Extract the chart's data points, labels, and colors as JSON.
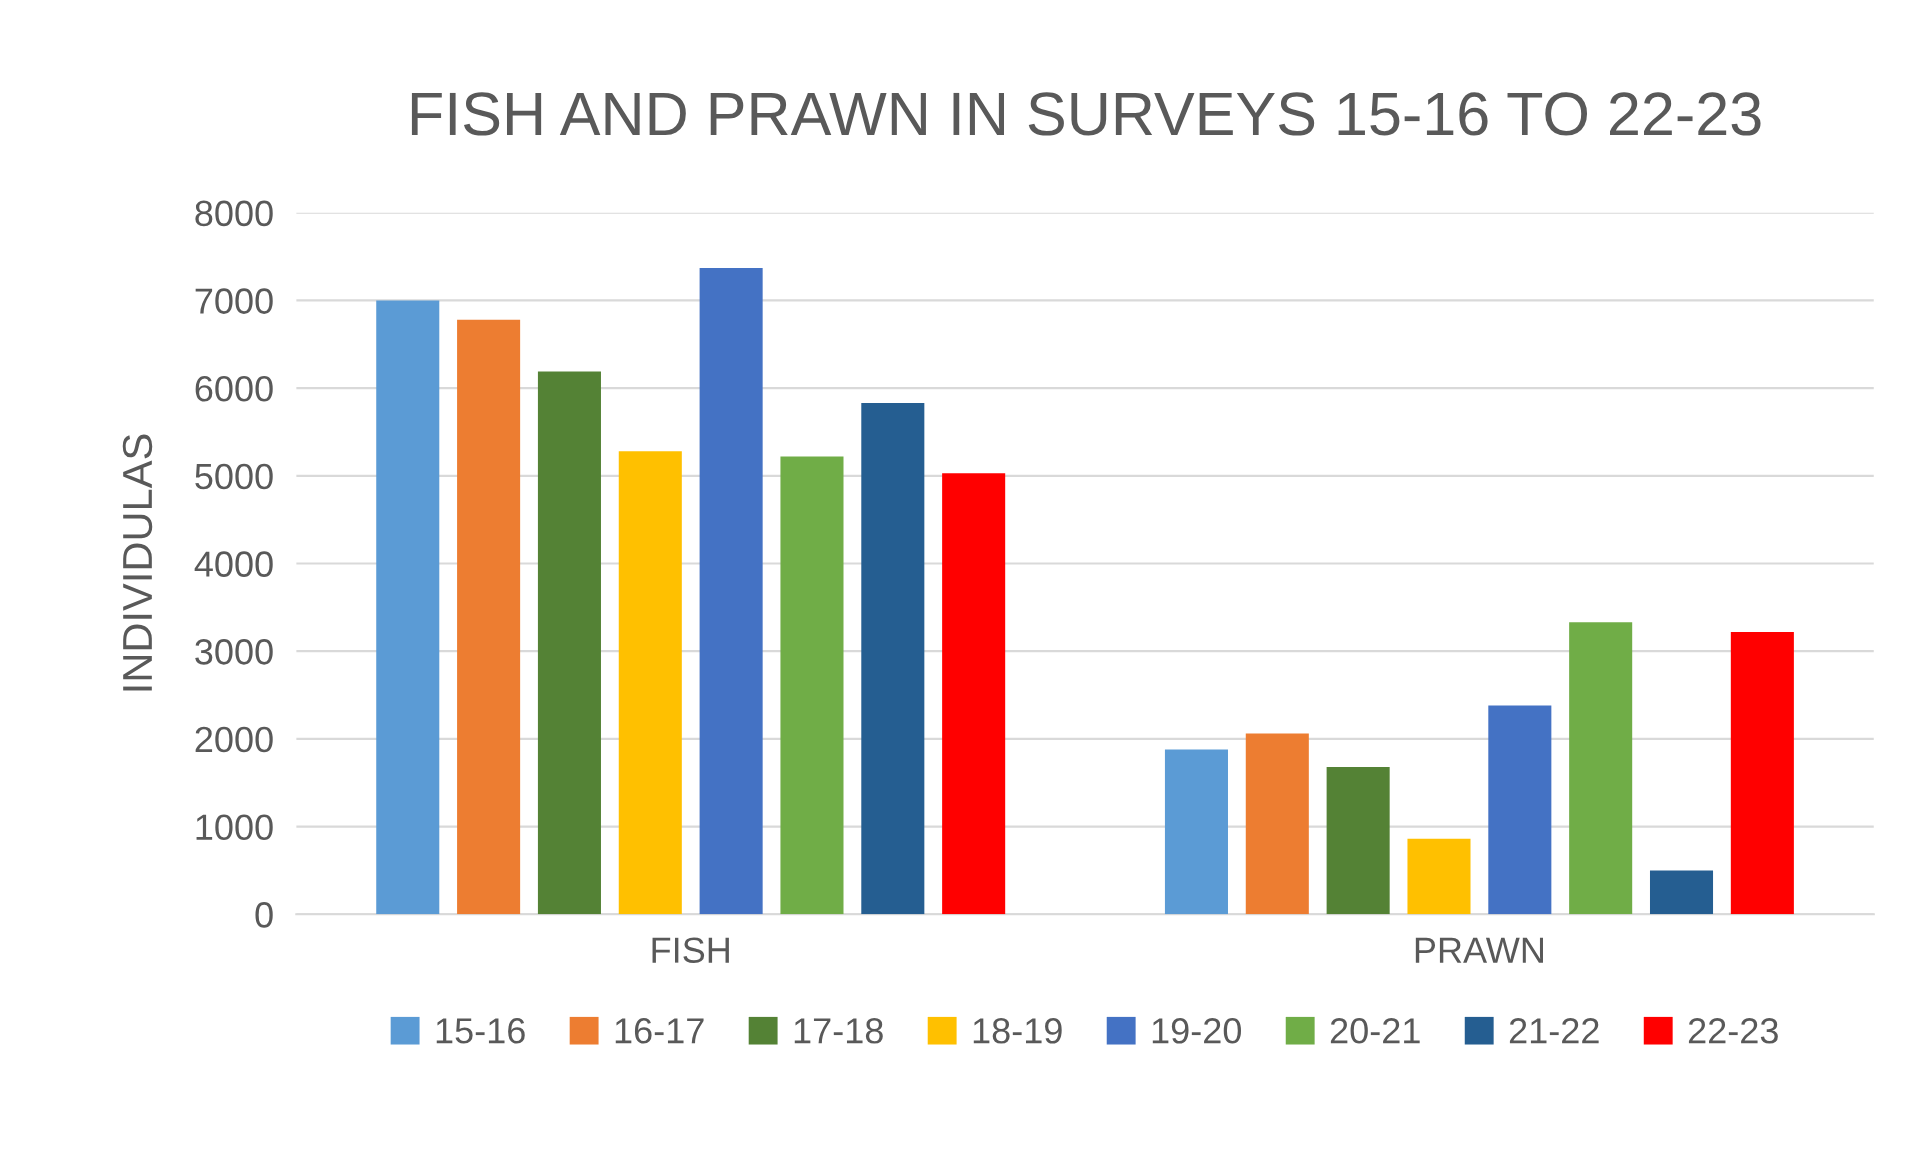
{
  "chart_data": {
    "type": "bar",
    "title": "FISH AND PRAWN IN SURVEYS 15-16 TO 22-23",
    "ylabel": "INDIVIDULAS",
    "categories": [
      "FISH",
      "PRAWN"
    ],
    "series": [
      {
        "name": "15-16",
        "color": "#5b9bd5",
        "values": [
          7000,
          1880
        ]
      },
      {
        "name": "16-17",
        "color": "#ed7d31",
        "values": [
          6780,
          2060
        ]
      },
      {
        "name": "17-18",
        "color": "#548235",
        "values": [
          6190,
          1680
        ]
      },
      {
        "name": "18-19",
        "color": "#ffc000",
        "values": [
          5280,
          860
        ]
      },
      {
        "name": "19-20",
        "color": "#4472c4",
        "values": [
          7370,
          2380
        ]
      },
      {
        "name": "20-21",
        "color": "#70ad47",
        "values": [
          5220,
          3330
        ]
      },
      {
        "name": "21-22",
        "color": "#255e91",
        "values": [
          5830,
          500
        ]
      },
      {
        "name": "22-23",
        "color": "#ff0000",
        "values": [
          5030,
          3220
        ]
      }
    ],
    "ylim": [
      0,
      8000
    ],
    "yticks": [
      0,
      1000,
      2000,
      3000,
      4000,
      5000,
      6000,
      7000,
      8000
    ],
    "grid": "y",
    "legend": "bottom"
  }
}
